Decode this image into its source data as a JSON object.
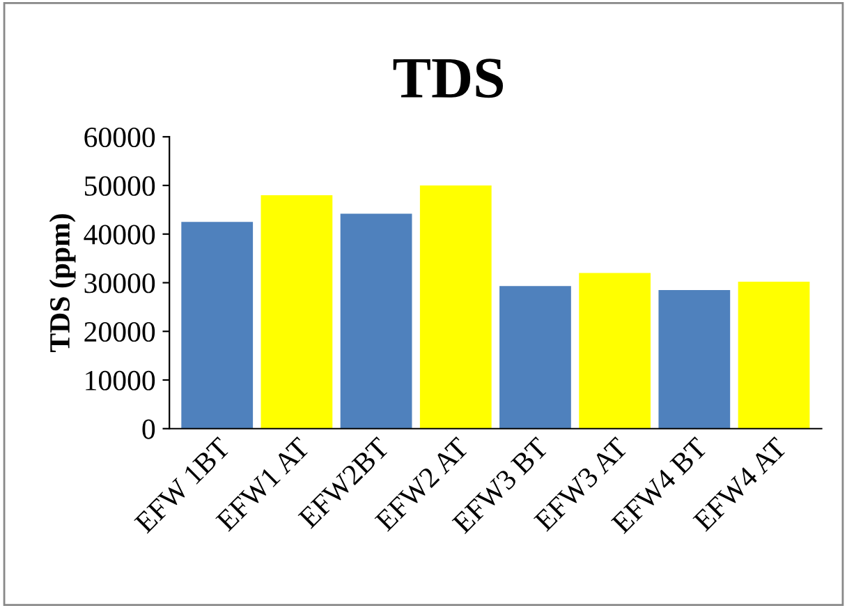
{
  "chart_data": {
    "type": "bar",
    "title": "TDS",
    "ylabel": "TDS (ppm)",
    "categories": [
      "EFW 1BT",
      "EFW1 AT",
      "EFW2BT",
      "EFW2 AT",
      "EFW3 BT",
      "EFW3 AT",
      "EFW4 BT",
      "EFW4 AT"
    ],
    "values": [
      42500,
      48000,
      44200,
      50000,
      29300,
      32000,
      28500,
      30200
    ],
    "colors": [
      "#4f81bd",
      "#ffff00",
      "#4f81bd",
      "#ffff00",
      "#4f81bd",
      "#ffff00",
      "#4f81bd",
      "#ffff00"
    ],
    "ylim": [
      0,
      60000
    ],
    "yticks": [
      0,
      10000,
      20000,
      30000,
      40000,
      50000,
      60000
    ],
    "grid": false,
    "legend": false
  }
}
